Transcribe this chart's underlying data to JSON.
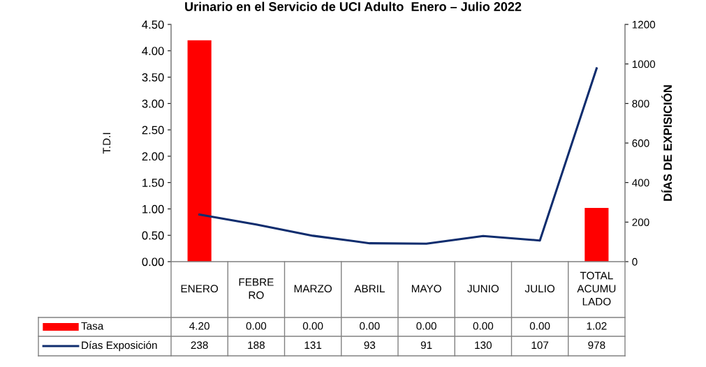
{
  "chart_data": {
    "type": "bar",
    "title": "Urinario en el Servicio de UCI Adulto  Enero – Julio 2022",
    "ylabel": "T.D.I",
    "y2label": "DÍAS DE EXPISICIÓN",
    "categories": [
      "ENERO",
      "FEBRE\nRO",
      "MARZO",
      "ABRIL",
      "MAYO",
      "JUNIO",
      "JULIO",
      "TOTAL\nACUMU\nLADO"
    ],
    "series": [
      {
        "name": "Tasa",
        "color": "#ff0000",
        "values": [
          4.2,
          0,
          0,
          0,
          0,
          0,
          0,
          1.02
        ],
        "value_labels": [
          "4.20",
          "0.00",
          "0.00",
          "0.00",
          "0.00",
          "0.00",
          "0.00",
          "1.02"
        ]
      },
      {
        "name": "Días Exposición",
        "type": "line",
        "axis": "y2",
        "color": "#0f2d6e",
        "values": [
          238,
          188,
          131,
          93,
          91,
          130,
          107,
          978
        ],
        "value_labels": [
          "238",
          "188",
          "131",
          "93",
          "91",
          "130",
          "107",
          "978"
        ]
      }
    ],
    "ylim": [
      0,
      4.5
    ],
    "yticks": [
      {
        "value": 0,
        "label": "0.00"
      },
      {
        "value": 0.5,
        "label": "0.50"
      },
      {
        "value": 1,
        "label": "1.00"
      },
      {
        "value": 1.5,
        "label": "1.50"
      },
      {
        "value": 2,
        "label": "2.00"
      },
      {
        "value": 2.5,
        "label": "2.50"
      },
      {
        "value": 3,
        "label": "3.00"
      },
      {
        "value": 3.5,
        "label": "3.50"
      },
      {
        "value": 4,
        "label": "4.00"
      },
      {
        "value": 4.5,
        "label": "4.50"
      }
    ],
    "y2lim": [
      0,
      1200
    ],
    "y2ticks": [
      0,
      200,
      400,
      600,
      800,
      1000,
      1200
    ],
    "legend": "bottom",
    "grid": false
  }
}
